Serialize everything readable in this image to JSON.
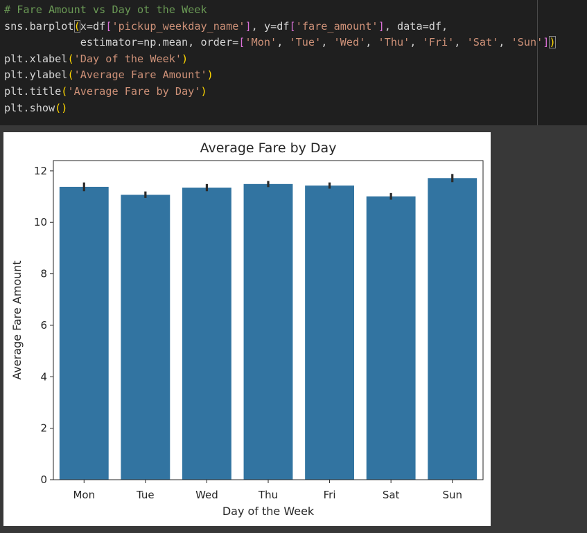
{
  "code_cell": {
    "lines": [
      [
        {
          "t": "# Fare Amount vs Day ot the Week",
          "c": "comment"
        }
      ],
      [
        {
          "t": "sns.barplot",
          "c": "text"
        },
        {
          "t": "(",
          "c": "b1",
          "hl": true
        },
        {
          "t": "x=df",
          "c": "text"
        },
        {
          "t": "[",
          "c": "b2"
        },
        {
          "t": "'pickup_weekday_name'",
          "c": "string"
        },
        {
          "t": "]",
          "c": "b2"
        },
        {
          "t": ", y=df",
          "c": "text"
        },
        {
          "t": "[",
          "c": "b2"
        },
        {
          "t": "'fare_amount'",
          "c": "string"
        },
        {
          "t": "]",
          "c": "b2"
        },
        {
          "t": ", data=df,",
          "c": "text"
        }
      ],
      [
        {
          "t": "            estimator=np.mean, order=",
          "c": "text"
        },
        {
          "t": "[",
          "c": "b2"
        },
        {
          "t": "'Mon'",
          "c": "string"
        },
        {
          "t": ", ",
          "c": "text"
        },
        {
          "t": "'Tue'",
          "c": "string"
        },
        {
          "t": ", ",
          "c": "text"
        },
        {
          "t": "'Wed'",
          "c": "string"
        },
        {
          "t": ", ",
          "c": "text"
        },
        {
          "t": "'Thu'",
          "c": "string"
        },
        {
          "t": ", ",
          "c": "text"
        },
        {
          "t": "'Fri'",
          "c": "string"
        },
        {
          "t": ", ",
          "c": "text"
        },
        {
          "t": "'Sat'",
          "c": "string"
        },
        {
          "t": ", ",
          "c": "text"
        },
        {
          "t": "'Sun'",
          "c": "string"
        },
        {
          "t": "]",
          "c": "b2"
        },
        {
          "t": ")",
          "c": "b1",
          "hl": true
        }
      ],
      [
        {
          "t": "plt.xlabel",
          "c": "text"
        },
        {
          "t": "(",
          "c": "b1"
        },
        {
          "t": "'Day of the Week'",
          "c": "string"
        },
        {
          "t": ")",
          "c": "b1"
        }
      ],
      [
        {
          "t": "plt.ylabel",
          "c": "text"
        },
        {
          "t": "(",
          "c": "b1"
        },
        {
          "t": "'Average Fare Amount'",
          "c": "string"
        },
        {
          "t": ")",
          "c": "b1"
        }
      ],
      [
        {
          "t": "plt.title",
          "c": "text"
        },
        {
          "t": "(",
          "c": "b1"
        },
        {
          "t": "'Average Fare by Day'",
          "c": "string"
        },
        {
          "t": ")",
          "c": "b1"
        }
      ],
      [
        {
          "t": "plt.show",
          "c": "text"
        },
        {
          "t": "()",
          "c": "b1"
        }
      ]
    ]
  },
  "chart_data": {
    "type": "bar",
    "title": "Average Fare by Day",
    "xlabel": "Day of the Week",
    "ylabel": "Average Fare Amount",
    "categories": [
      "Mon",
      "Tue",
      "Wed",
      "Thu",
      "Fri",
      "Sat",
      "Sun"
    ],
    "values": [
      11.38,
      11.07,
      11.35,
      11.49,
      11.43,
      11.01,
      11.72
    ],
    "ci_low": [
      11.21,
      10.95,
      11.21,
      11.37,
      11.31,
      10.88,
      11.56
    ],
    "ci_high": [
      11.55,
      11.2,
      11.49,
      11.61,
      11.55,
      11.14,
      11.88
    ],
    "ylim": [
      0,
      12.4
    ],
    "yticks": [
      0,
      2,
      4,
      6,
      8,
      10,
      12
    ],
    "grid": false,
    "bar_color": "#3274a1",
    "errorbar_color": "#2b2b2b"
  }
}
